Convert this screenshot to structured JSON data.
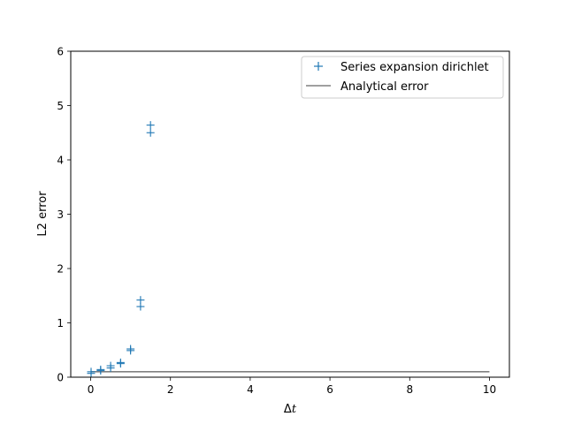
{
  "chart_data": {
    "type": "scatter",
    "xlabel_base": "Δ",
    "xlabel_var": "t",
    "ylabel": "L2 error",
    "xlim": [
      -0.5,
      10.5
    ],
    "ylim": [
      0,
      6
    ],
    "xticks": [
      0,
      2,
      4,
      6,
      8,
      10
    ],
    "yticks": [
      0,
      1,
      2,
      3,
      4,
      5,
      6
    ],
    "grid": false,
    "legend_position": "top-right",
    "series": [
      {
        "name": "Series expansion dirichlet",
        "marker": "plus",
        "color": "#1f77b4",
        "x": [
          0.01,
          0.01,
          0.25,
          0.25,
          0.5,
          0.5,
          0.75,
          0.75,
          1.0,
          1.0,
          1.25,
          1.25,
          1.5,
          1.5
        ],
        "y": [
          0.07,
          0.1,
          0.12,
          0.14,
          0.17,
          0.21,
          0.25,
          0.27,
          0.49,
          0.52,
          1.3,
          1.42,
          4.5,
          4.64
        ]
      },
      {
        "name": "Analytical error",
        "type": "line",
        "color": "#808080",
        "x": [
          0,
          10
        ],
        "y": [
          0.1,
          0.1
        ]
      }
    ]
  }
}
